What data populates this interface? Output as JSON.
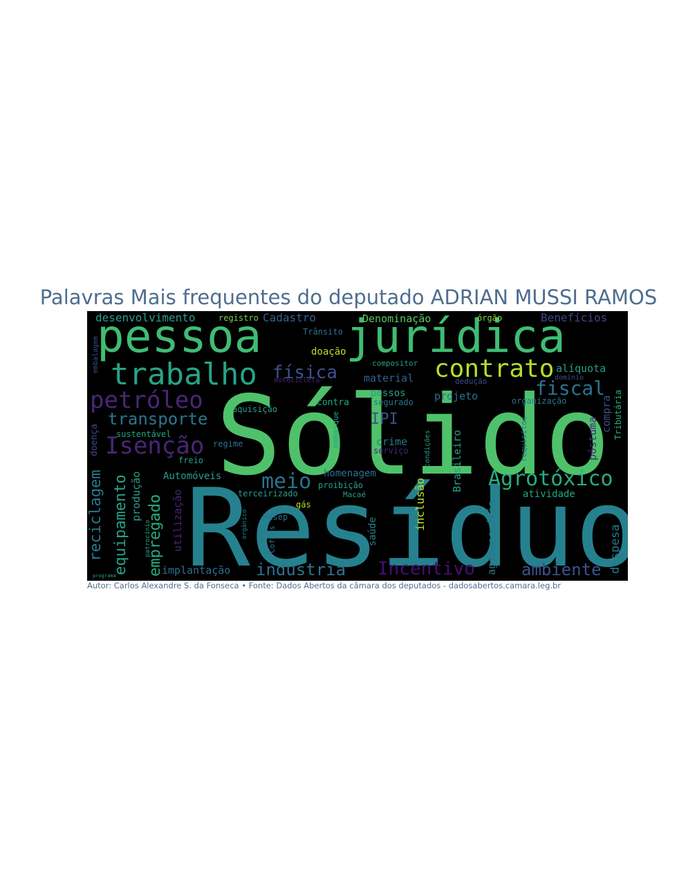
{
  "title": "Palavras Mais frequentes do deputado ADRIAN MUSSI RAMOS",
  "footer": "Autor: Carlos Alexandre S. da Fonseca • Fonte: Dados Abertos da câmara dos deputados - dadosabertos.camara.leg.br",
  "cloud": {
    "background": "#000000",
    "palette": {
      "teal": "#26818e",
      "green": "#4fc16b",
      "olive": "#cfe11c",
      "purple": "#482677",
      "violet": "#3b528b",
      "aqua": "#2a9e89",
      "dark": "#404588"
    },
    "words": [
      {
        "text": "Sólido",
        "color": "#4fc16b"
      },
      {
        "text": "Resíduo",
        "color": "#26818e"
      },
      {
        "text": "pessoa",
        "color": "#3fbc73"
      },
      {
        "text": "jurídica",
        "color": "#3fbc73"
      },
      {
        "text": "trabalho",
        "color": "#26a387"
      },
      {
        "text": "contrato",
        "color": "#b5de2b"
      },
      {
        "text": "petróleo",
        "color": "#482677"
      },
      {
        "text": "Isenção",
        "color": "#482677"
      },
      {
        "text": "Agrotóxico",
        "color": "#27ad81"
      },
      {
        "text": "transporte",
        "color": "#2a768e"
      },
      {
        "text": "fiscal",
        "color": "#2c728e"
      },
      {
        "text": "física",
        "color": "#3b528b"
      },
      {
        "text": "meio",
        "color": "#2d718e"
      },
      {
        "text": "reciclagem",
        "color": "#2a778e"
      },
      {
        "text": "equipamento",
        "color": "#26a387"
      },
      {
        "text": "empregado",
        "color": "#27ad81"
      },
      {
        "text": "indústria",
        "color": "#2c728e"
      },
      {
        "text": "Incentivo",
        "color": "#440f76"
      },
      {
        "text": "ambiente",
        "color": "#3b528b"
      },
      {
        "text": "desenvolvimento",
        "color": "#2a9e89"
      },
      {
        "text": "registro",
        "color": "#7ad151"
      },
      {
        "text": "Cadastro",
        "color": "#33638d"
      },
      {
        "text": "Denominação",
        "color": "#5ec962"
      },
      {
        "text": "órgão",
        "color": "#90d743"
      },
      {
        "text": "Benefícios",
        "color": "#404588"
      },
      {
        "text": "alíquota",
        "color": "#2a9e89"
      },
      {
        "text": "material",
        "color": "#33638d"
      },
      {
        "text": "doação",
        "color": "#bddf26"
      },
      {
        "text": "pessos",
        "color": "#2a9e89"
      },
      {
        "text": "projeto",
        "color": "#2c728e"
      },
      {
        "text": "IPI",
        "color": "#3b528b"
      },
      {
        "text": "crime",
        "color": "#2a778e"
      },
      {
        "text": "homenagem",
        "color": "#2d708e"
      },
      {
        "text": "Automóveis",
        "color": "#2a9e89"
      },
      {
        "text": "atividade",
        "color": "#22a785"
      },
      {
        "text": "implantação",
        "color": "#2d708e"
      },
      {
        "text": "despesa",
        "color": "#2a768e"
      },
      {
        "text": "agropecuária",
        "color": "#2a788e"
      },
      {
        "text": "Brasileiro",
        "color": "#2a9e89"
      },
      {
        "text": "inclusão",
        "color": "#bddf26"
      },
      {
        "text": "póstuma",
        "color": "#482878"
      },
      {
        "text": "compra",
        "color": "#3b528b"
      },
      {
        "text": "Tributária",
        "color": "#27ad81"
      },
      {
        "text": "produção",
        "color": "#2a9e89"
      },
      {
        "text": "utilização",
        "color": "#482677"
      },
      {
        "text": "doença",
        "color": "#3e4a89"
      },
      {
        "text": "sustentável",
        "color": "#22a785"
      },
      {
        "text": "freio",
        "color": "#2a9e89"
      },
      {
        "text": "regime",
        "color": "#2c728e"
      },
      {
        "text": "aquisição",
        "color": "#2a9e89"
      },
      {
        "text": "contra",
        "color": "#22a785"
      },
      {
        "text": "segurado",
        "color": "#2a768e"
      },
      {
        "text": "organização",
        "color": "#2a768e"
      },
      {
        "text": "dedução",
        "color": "#3b528b"
      },
      {
        "text": "motocicleta",
        "color": "#482677"
      },
      {
        "text": "compositor",
        "color": "#2a9e89"
      },
      {
        "text": "Trânsito",
        "color": "#2c728e"
      },
      {
        "text": "saúde",
        "color": "#26818e"
      },
      {
        "text": "terceirizado",
        "color": "#2a9e89"
      },
      {
        "text": "proibição",
        "color": "#2a9e89"
      },
      {
        "text": "Pasep",
        "color": "#2c728e"
      },
      {
        "text": "Cofins",
        "color": "#2a778e"
      },
      {
        "text": "requisitos",
        "color": "#2a768e"
      },
      {
        "text": "embalagem",
        "color": "#3b528b"
      },
      {
        "text": "gás",
        "color": "#bddf26"
      },
      {
        "text": "serviço",
        "color": "#482878"
      },
      {
        "text": "embarque",
        "color": "#22a785"
      },
      {
        "text": "Macaé",
        "color": "#2a9e89"
      },
      {
        "text": "patrocínio",
        "color": "#2a9e89"
      },
      {
        "text": "orgânico",
        "color": "#26818e"
      },
      {
        "text": "condições",
        "color": "#2a9e89"
      },
      {
        "text": "programa",
        "color": "#2a9e89"
      },
      {
        "text": "domínio",
        "color": "#3b528b"
      }
    ]
  }
}
